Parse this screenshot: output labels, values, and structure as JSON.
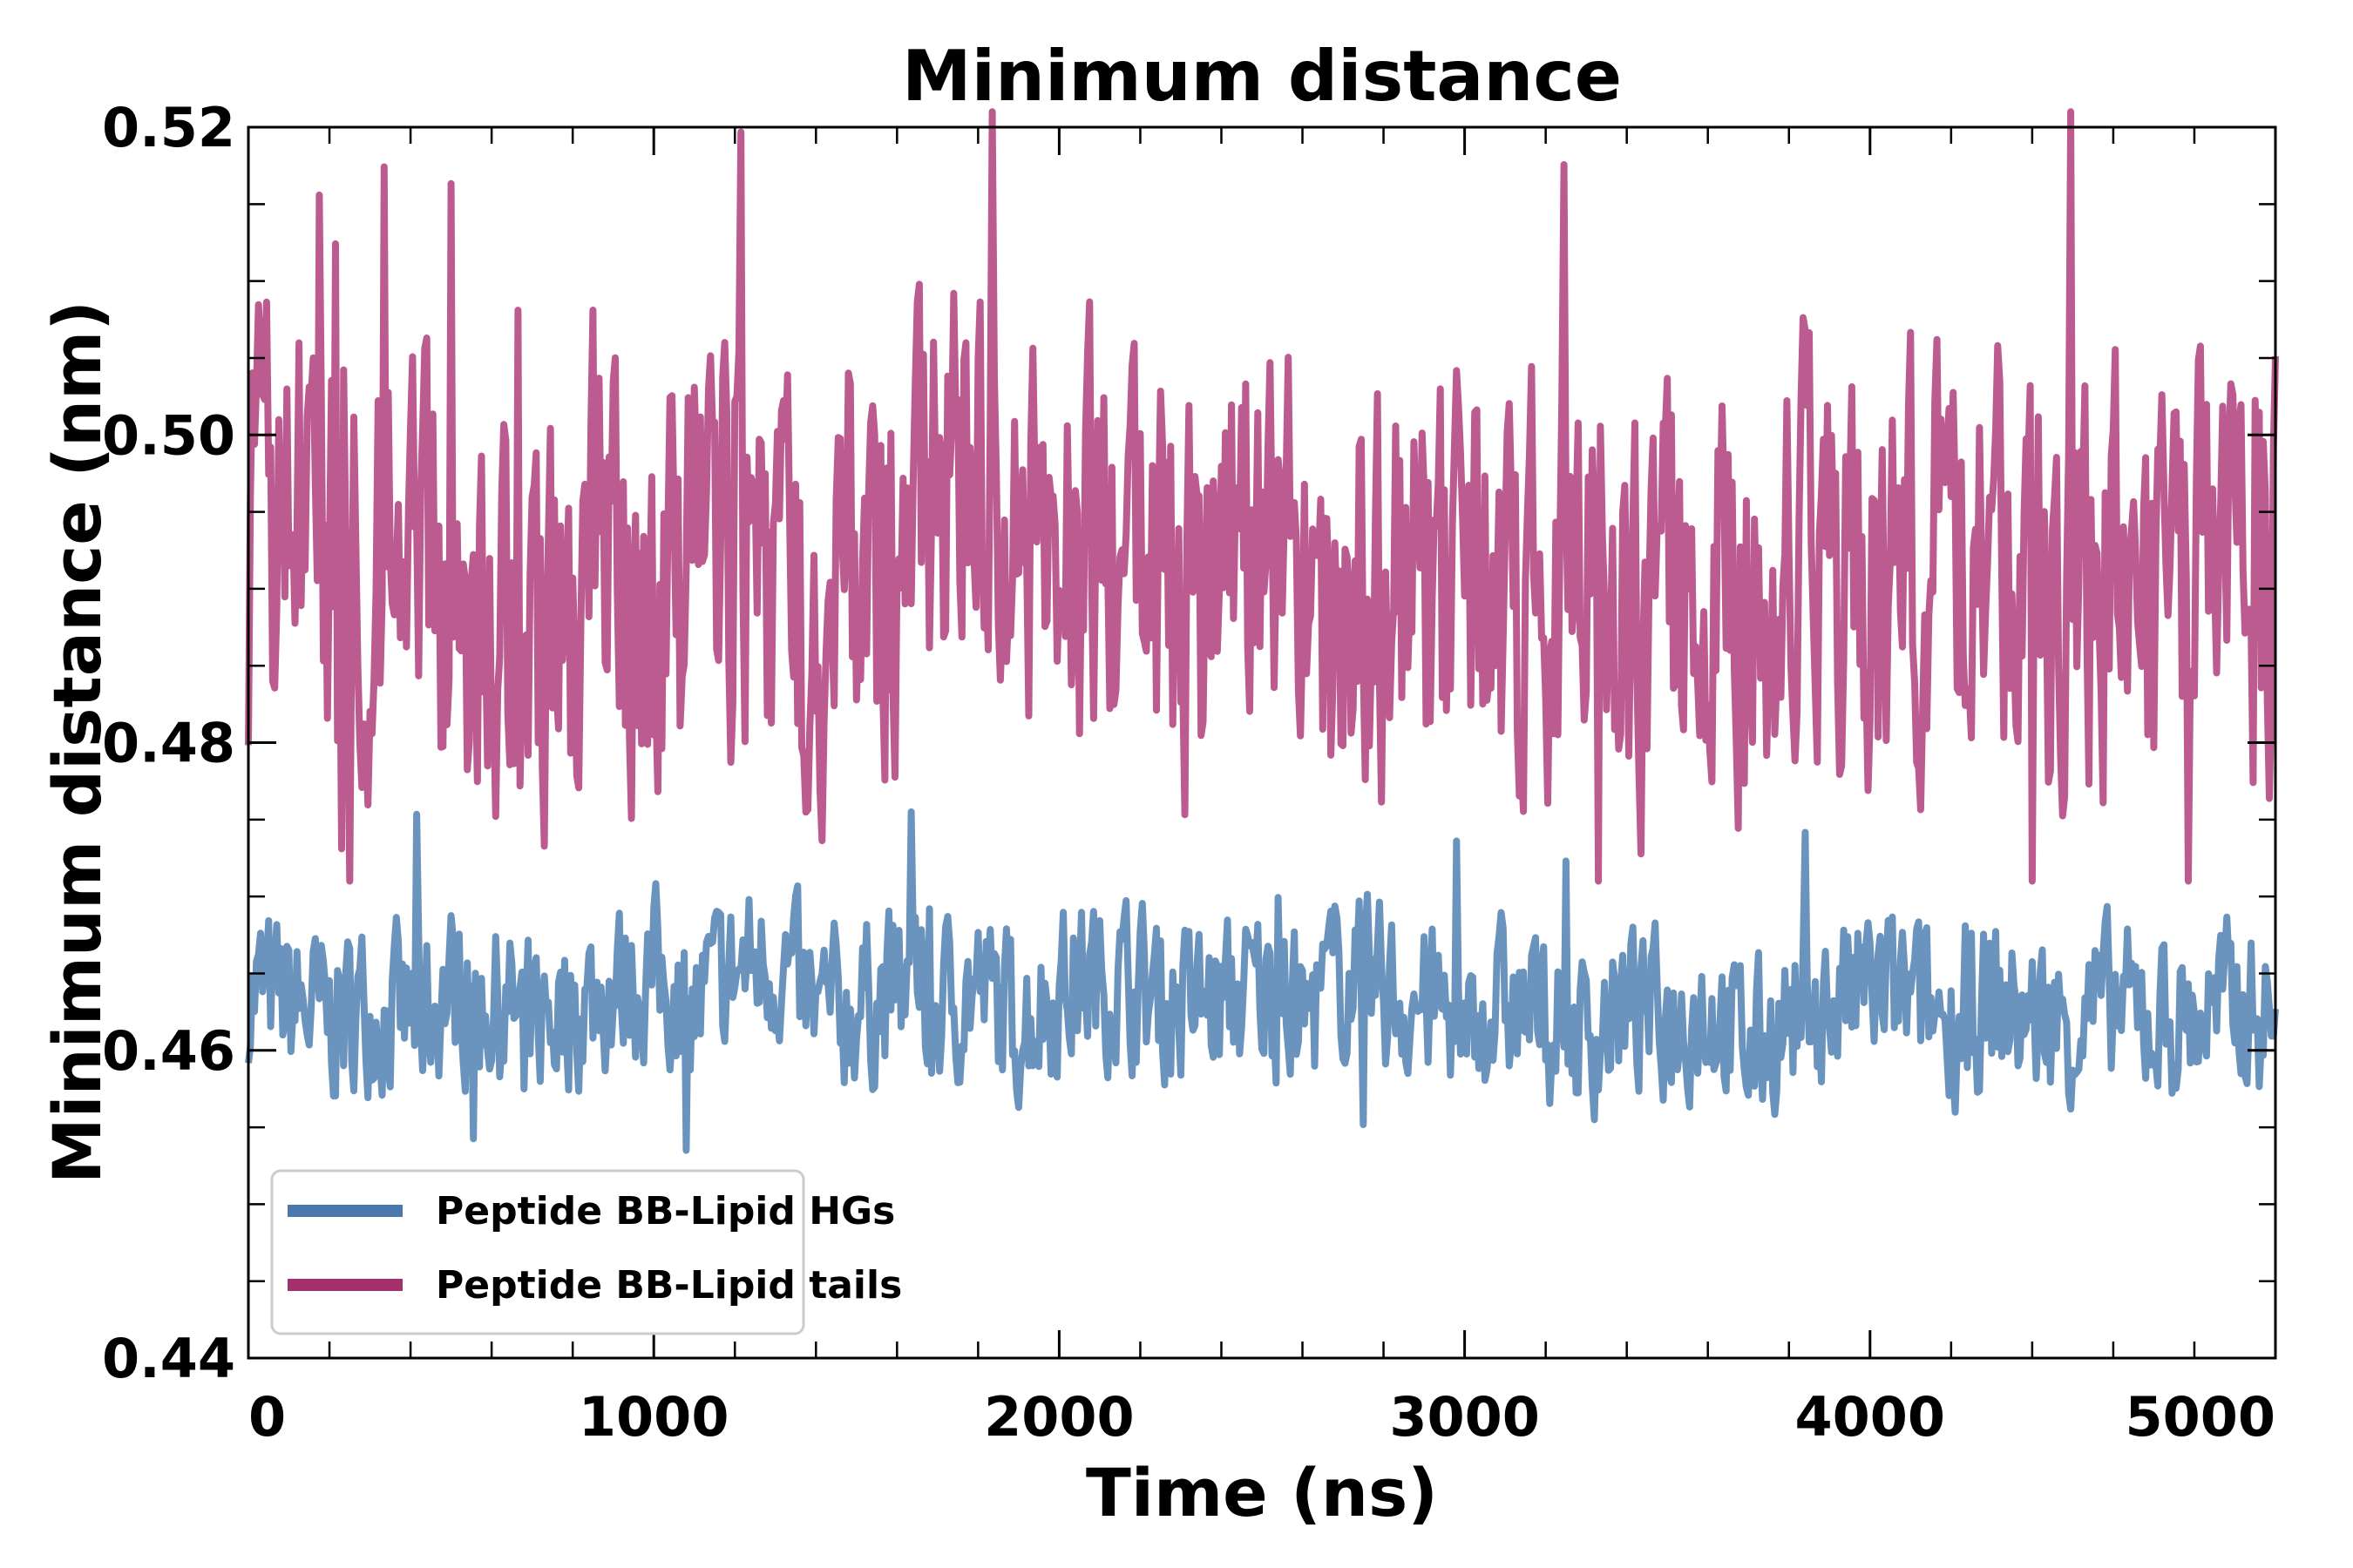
{
  "chart_data": {
    "type": "line",
    "title": "Minimum distance",
    "xlabel": "Time (ns)",
    "ylabel": "Minimum distance (nm)",
    "xlim": [
      0,
      5000
    ],
    "ylim": [
      0.44,
      0.52
    ],
    "xticks": [
      0,
      1000,
      2000,
      3000,
      4000,
      5000
    ],
    "xtick_labels": [
      "0",
      "1000",
      "2000",
      "3000",
      "4000",
      "5000"
    ],
    "yticks": [
      0.44,
      0.46,
      0.48,
      0.5,
      0.52
    ],
    "ytick_labels": [
      "0.44",
      "0.46",
      "0.48",
      "0.50",
      "0.52"
    ],
    "grid": false,
    "legend_position": "bottom-left",
    "series": [
      {
        "name": "Peptide BB-Lipid HGs",
        "color": "#4a77ad",
        "line_color": "#6a94be",
        "x": [
          0,
          100,
          200,
          300,
          400,
          500,
          600,
          700,
          800,
          900,
          1000,
          1100,
          1200,
          1300,
          1400,
          1500,
          1600,
          1700,
          1800,
          1900,
          2000,
          2100,
          2200,
          2300,
          2400,
          2500,
          2600,
          2700,
          2800,
          2900,
          3000,
          3100,
          3200,
          3300,
          3400,
          3500,
          3600,
          3700,
          3800,
          3900,
          4000,
          4100,
          4200,
          4300,
          4400,
          4500,
          4600,
          4700,
          4800,
          4900,
          5000
        ],
        "y": [
          0.464,
          0.463,
          0.462,
          0.463,
          0.462,
          0.464,
          0.463,
          0.462,
          0.463,
          0.464,
          0.465,
          0.463,
          0.465,
          0.466,
          0.462,
          0.463,
          0.464,
          0.463,
          0.464,
          0.462,
          0.464,
          0.465,
          0.464,
          0.463,
          0.463,
          0.464,
          0.462,
          0.465,
          0.464,
          0.463,
          0.462,
          0.463,
          0.462,
          0.461,
          0.463,
          0.462,
          0.463,
          0.46,
          0.462,
          0.463,
          0.464,
          0.463,
          0.462,
          0.463,
          0.462,
          0.462,
          0.463,
          0.462,
          0.462,
          0.463,
          0.462
        ],
        "min": 0.4535,
        "max": 0.4755
      },
      {
        "name": "Peptide BB-Lipid tails",
        "color": "#a3306d",
        "line_color": "#bb5b8f",
        "x": [
          0,
          100,
          200,
          300,
          400,
          500,
          600,
          700,
          800,
          900,
          1000,
          1100,
          1200,
          1300,
          1400,
          1500,
          1600,
          1700,
          1800,
          1900,
          2000,
          2100,
          2200,
          2300,
          2400,
          2500,
          2600,
          2700,
          2800,
          2900,
          3000,
          3100,
          3200,
          3300,
          3400,
          3500,
          3600,
          3700,
          3800,
          3900,
          4000,
          4100,
          4200,
          4300,
          4400,
          4500,
          4600,
          4700,
          4800,
          4900,
          5000
        ],
        "y": [
          0.492,
          0.496,
          0.493,
          0.491,
          0.495,
          0.489,
          0.49,
          0.487,
          0.488,
          0.49,
          0.489,
          0.491,
          0.494,
          0.49,
          0.489,
          0.492,
          0.491,
          0.496,
          0.497,
          0.493,
          0.491,
          0.492,
          0.49,
          0.489,
          0.491,
          0.493,
          0.49,
          0.491,
          0.49,
          0.488,
          0.49,
          0.489,
          0.491,
          0.49,
          0.487,
          0.491,
          0.49,
          0.49,
          0.494,
          0.49,
          0.489,
          0.491,
          0.493,
          0.491,
          0.49,
          0.49,
          0.491,
          0.487,
          0.49,
          0.494,
          0.491
        ],
        "min": 0.471,
        "max": 0.521
      }
    ]
  }
}
